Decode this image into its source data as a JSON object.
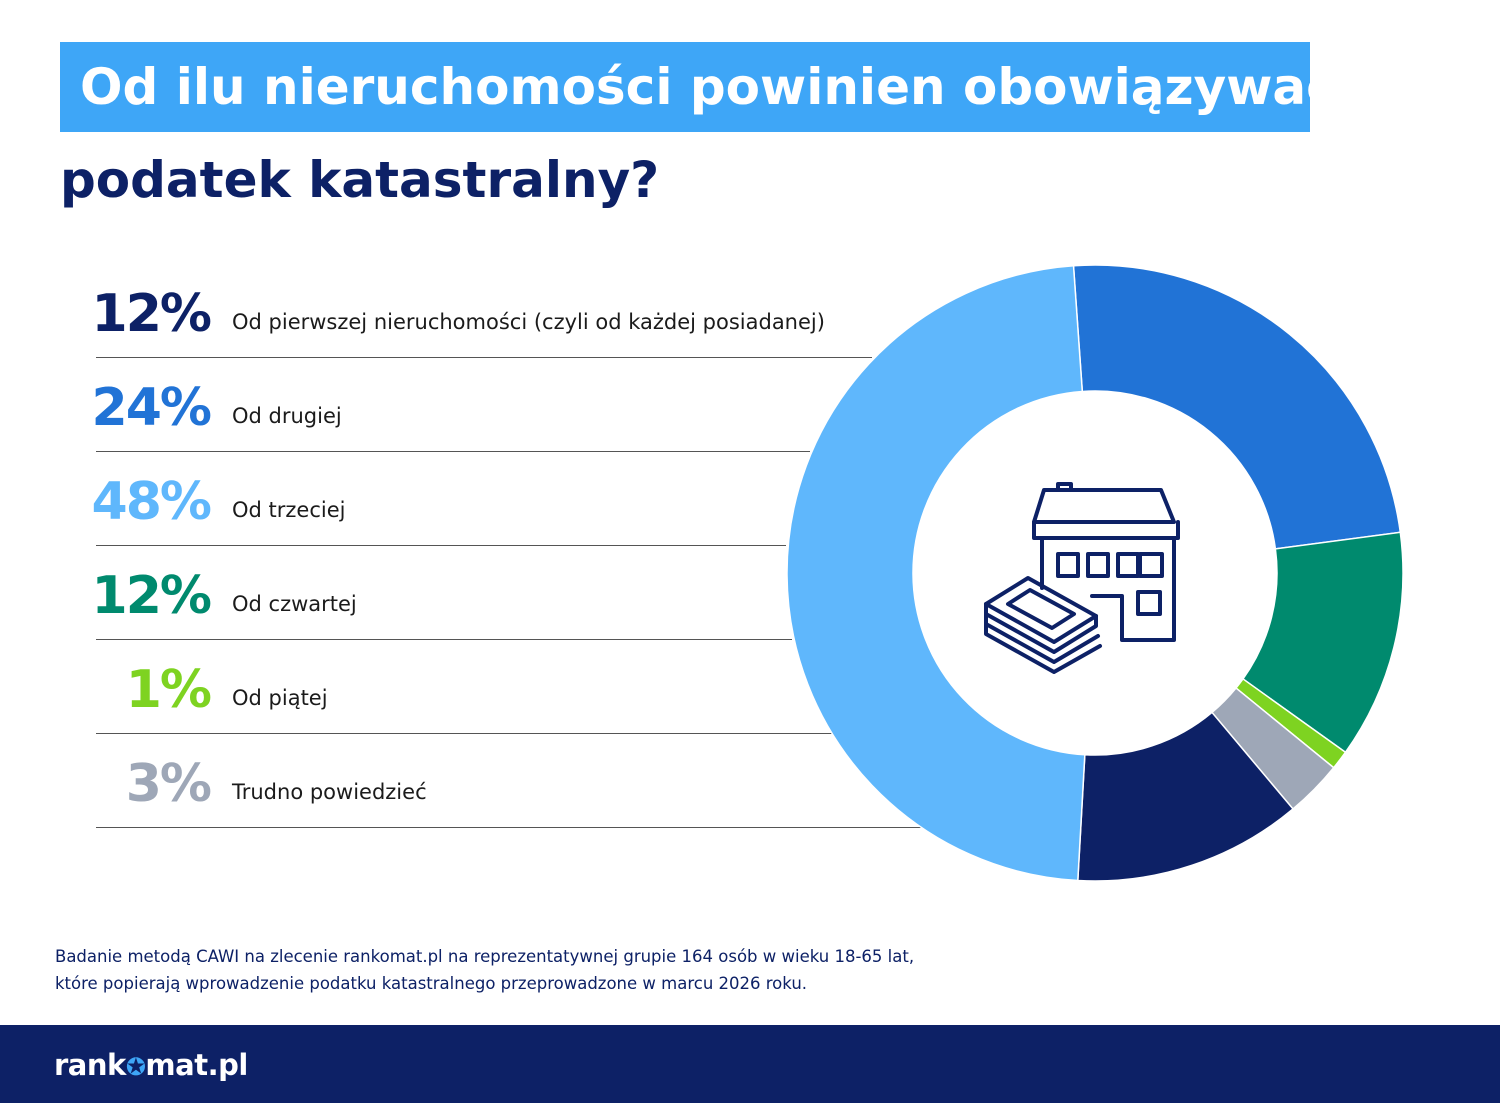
{
  "title_line1": "Od ilu nieruchomości powinien obowiązywać",
  "title_line2": "podatek katastralny?",
  "chart_data": {
    "type": "pie",
    "donut": true,
    "slices": [
      {
        "label": "Od pierwszej nieruchomości (czyli od każdej posiadanej)",
        "value": 12,
        "display": "12%",
        "color": "#0d2166"
      },
      {
        "label": "Od drugiej",
        "value": 24,
        "display": "24%",
        "color": "#2173d6"
      },
      {
        "label": "Od trzeciej",
        "value": 48,
        "display": "48%",
        "color": "#5fb7fc"
      },
      {
        "label": "Od czwartej",
        "value": 12,
        "display": "12%",
        "color": "#008a6e"
      },
      {
        "label": "Od piątej",
        "value": 1,
        "display": "1%",
        "color": "#7ed321"
      },
      {
        "label": "Trudno powiedzieć",
        "value": 3,
        "display": "3%",
        "color": "#9ea7b7"
      }
    ],
    "slice_order_clockwise_from_top": [
      1,
      3,
      4,
      5,
      0,
      2
    ],
    "center_icon": "house-with-money-icon"
  },
  "footnote_line1": "Badanie metodą CAWI na zlecenie rankomat.pl na reprezentatywnej grupie 164 osób w wieku 18-65 lat,",
  "footnote_line2": "które popierają wprowadzenie podatku katastralnego przeprowadzone w marcu 2026 roku.",
  "logo": {
    "part1": "rank",
    "part2": "mat.pl",
    "star_icon": "star-circle-icon"
  },
  "colors": {
    "title_bg": "#3ea6f7",
    "navy": "#0d2166"
  }
}
